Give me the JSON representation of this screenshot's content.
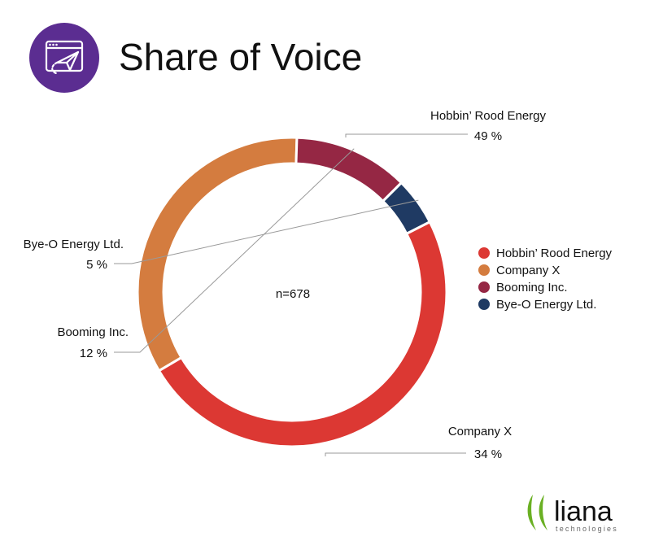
{
  "header": {
    "title": "Share of Voice",
    "icon": "paper-plane-browser-icon",
    "icon_bg_color": "#5b2d91"
  },
  "logo": {
    "wordmark": "liana",
    "tagline": "technologies",
    "accent_color": "#6ab023"
  },
  "chart_data": {
    "type": "pie",
    "style": "donut",
    "center_label": "n=678",
    "unit": "%",
    "legend_position": "right",
    "slices": [
      {
        "name": "Hobbin’ Rood Energy",
        "value": 49,
        "color": "#dc3833"
      },
      {
        "name": "Company X",
        "value": 34,
        "color": "#d47c3f"
      },
      {
        "name": "Booming Inc.",
        "value": 12,
        "color": "#952744"
      },
      {
        "name": "Bye-O Energy Ltd.",
        "value": 5,
        "color": "#1f3a63"
      }
    ]
  }
}
